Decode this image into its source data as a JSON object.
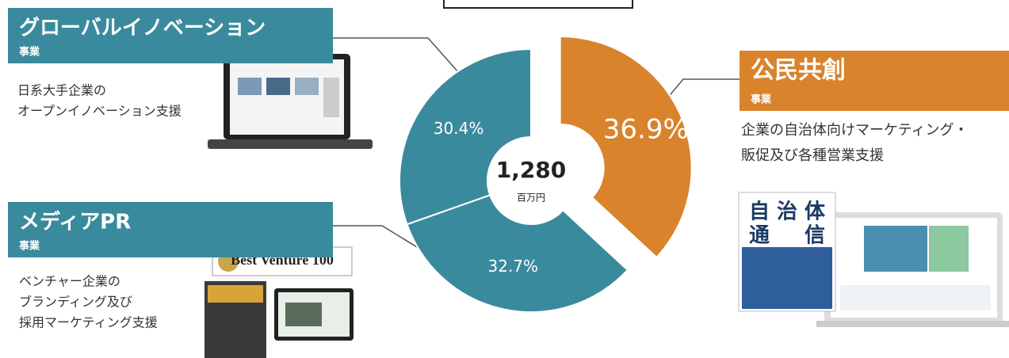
{
  "chart_data": {
    "type": "pie",
    "categories": [
      "公民共創",
      "メディアPR",
      "グローバルイノベーション"
    ],
    "values": [
      36.9,
      32.7,
      30.4
    ],
    "value_labels": [
      "36.9%",
      "32.7%",
      "30.4%"
    ],
    "colors": [
      "#d9832c",
      "#3a8a9d",
      "#3a8a9d"
    ],
    "total": {
      "value": 1280,
      "label": "1,280"
    },
    "total_unit": "百万円"
  },
  "panels": [
    {
      "subtitle": "事業",
      "description": [
        "企業の自治体向けマーケティング・",
        "販促及び各種営業支援"
      ]
    },
    {
      "subtitle": "事業",
      "description": [
        "ベンチャー企業の",
        "ブランディング及び",
        "採用マーケティング支援"
      ]
    },
    {
      "subtitle": "事業",
      "description": [
        "日系大手企業の",
        "オープンイノベーション支援"
      ]
    }
  ],
  "badge": "Best Venture 100"
}
